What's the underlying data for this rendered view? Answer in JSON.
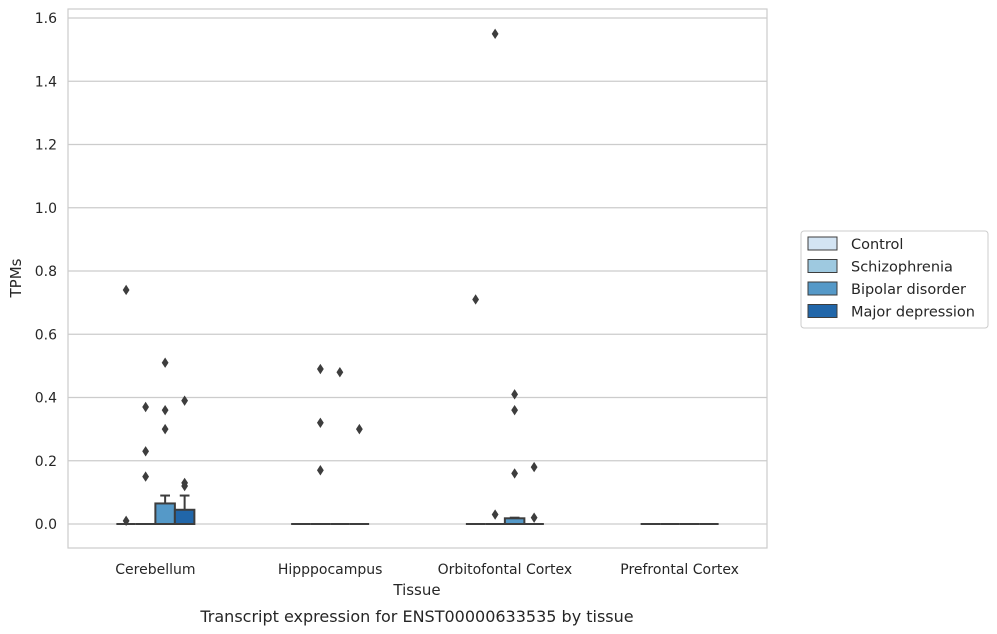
{
  "caption": "Transcript expression for ENST00000633535 by tissue",
  "chart_data": {
    "type": "box",
    "xlabel": "Tissue",
    "ylabel": "TPMs",
    "ylim": [
      -0.075,
      1.63
    ],
    "yticks": [
      0.0,
      0.2,
      0.4,
      0.6,
      0.8,
      1.0,
      1.2,
      1.4,
      1.6
    ],
    "ytick_labels": [
      "0.0",
      "0.2",
      "0.4",
      "0.6",
      "0.8",
      "1.0",
      "1.2",
      "1.4",
      "1.6"
    ],
    "grid": true,
    "legend_placement": "right",
    "categories": [
      "Cerebellum",
      "Hipppocampus",
      "Orbitofontal Cortex",
      "Prefrontal Cortex"
    ],
    "series": [
      {
        "name": "Control",
        "color": "#d3e4f3",
        "boxes": [
          {
            "q1": 0,
            "median": 0,
            "q3": 0,
            "whisker_low": 0,
            "whisker_high": 0,
            "outliers": [
              0.74,
              0.01
            ]
          },
          {
            "q1": 0,
            "median": 0,
            "q3": 0,
            "whisker_low": 0,
            "whisker_high": 0,
            "outliers": []
          },
          {
            "q1": 0,
            "median": 0,
            "q3": 0,
            "whisker_low": 0,
            "whisker_high": 0,
            "outliers": [
              0.71
            ]
          },
          {
            "q1": 0,
            "median": 0,
            "q3": 0,
            "whisker_low": 0,
            "whisker_high": 0,
            "outliers": []
          }
        ]
      },
      {
        "name": "Schizophrenia",
        "color": "#9ec9e0",
        "boxes": [
          {
            "q1": 0,
            "median": 0,
            "q3": 0,
            "whisker_low": 0,
            "whisker_high": 0,
            "outliers": [
              0.37,
              0.23,
              0.15
            ]
          },
          {
            "q1": 0,
            "median": 0,
            "q3": 0,
            "whisker_low": 0,
            "whisker_high": 0,
            "outliers": [
              0.49,
              0.32,
              0.17
            ]
          },
          {
            "q1": 0,
            "median": 0,
            "q3": 0,
            "whisker_low": 0,
            "whisker_high": 0,
            "outliers": [
              1.55,
              0.03
            ]
          },
          {
            "q1": 0,
            "median": 0,
            "q3": 0,
            "whisker_low": 0,
            "whisker_high": 0,
            "outliers": []
          }
        ]
      },
      {
        "name": "Bipolar disorder",
        "color": "#5599c8",
        "boxes": [
          {
            "q1": 0,
            "median": 0,
            "q3": 0.065,
            "whisker_low": 0,
            "whisker_high": 0.09,
            "outliers": [
              0.51,
              0.36,
              0.3
            ]
          },
          {
            "q1": 0,
            "median": 0,
            "q3": 0,
            "whisker_low": 0,
            "whisker_high": 0,
            "outliers": [
              0.48
            ]
          },
          {
            "q1": 0,
            "median": 0,
            "q3": 0.018,
            "whisker_low": 0,
            "whisker_high": 0.02,
            "outliers": [
              0.41,
              0.36,
              0.16
            ]
          },
          {
            "q1": 0,
            "median": 0,
            "q3": 0,
            "whisker_low": 0,
            "whisker_high": 0,
            "outliers": []
          }
        ]
      },
      {
        "name": "Major depression",
        "color": "#2166a9",
        "boxes": [
          {
            "q1": 0,
            "median": 0,
            "q3": 0.045,
            "whisker_low": 0,
            "whisker_high": 0.09,
            "outliers": [
              0.39,
              0.13,
              0.12
            ]
          },
          {
            "q1": 0,
            "median": 0,
            "q3": 0,
            "whisker_low": 0,
            "whisker_high": 0,
            "outliers": [
              0.3
            ]
          },
          {
            "q1": 0,
            "median": 0,
            "q3": 0,
            "whisker_low": 0,
            "whisker_high": 0,
            "outliers": [
              0.18,
              0.02
            ]
          },
          {
            "q1": 0,
            "median": 0,
            "q3": 0,
            "whisker_low": 0,
            "whisker_high": 0,
            "outliers": []
          }
        ]
      }
    ]
  }
}
